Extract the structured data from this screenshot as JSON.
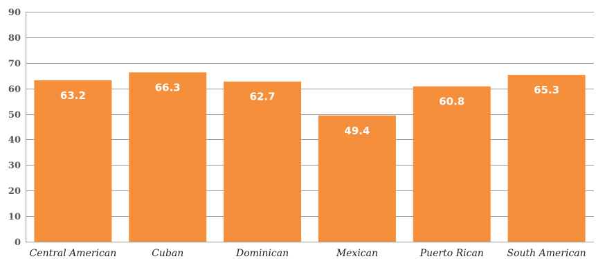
{
  "chart_data": {
    "type": "bar",
    "title": "",
    "xlabel": "",
    "ylabel": "",
    "categories": [
      "Central American",
      "Cuban",
      "Dominican",
      "Mexican",
      "Puerto Rican",
      "South American"
    ],
    "values": [
      63.2,
      66.3,
      62.7,
      49.4,
      60.8,
      65.3
    ],
    "data_labels": [
      "63.2",
      "66.3",
      "62.7",
      "49.4",
      "60.8",
      "65.3"
    ],
    "ylim": [
      0,
      90
    ],
    "yticks": [
      0,
      10,
      20,
      30,
      40,
      50,
      60,
      70,
      80,
      90
    ],
    "grid": true,
    "legend": "none",
    "colors": {
      "bar": "#f58f3b",
      "label": "#ffffff",
      "grid": "#9a9a9a"
    }
  }
}
